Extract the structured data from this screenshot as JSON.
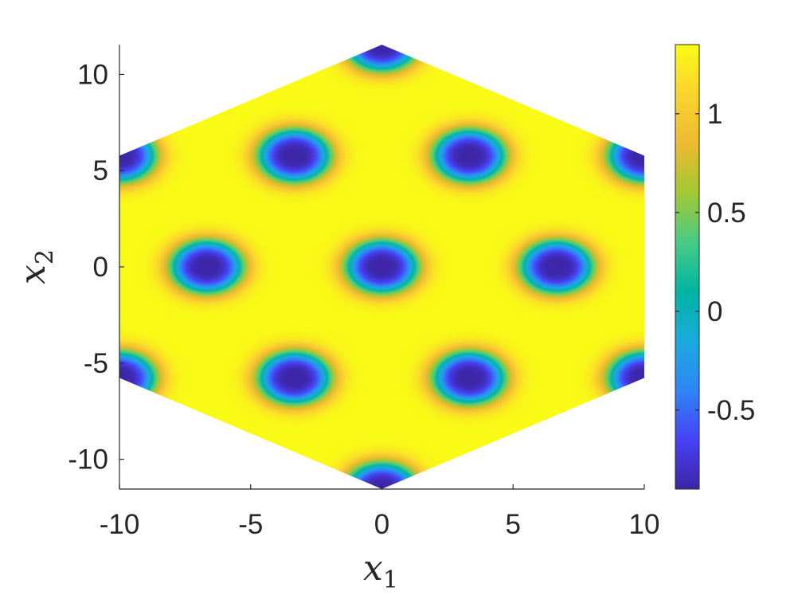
{
  "chart_data": {
    "type": "heatmap",
    "title": "",
    "xlabel": "x",
    "xlabel_sub": "1",
    "ylabel": "x",
    "ylabel_sub": "2",
    "xlim": [
      -10,
      10
    ],
    "ylim": [
      -11.55,
      11.55
    ],
    "x_ticks": [
      -10,
      -5,
      0,
      5,
      10
    ],
    "x_tick_labels": [
      "-10",
      "-5",
      "0",
      "5",
      "10"
    ],
    "y_ticks": [
      -10,
      -5,
      0,
      5,
      10
    ],
    "y_tick_labels": [
      "-10",
      "-5",
      "0",
      "5",
      "10"
    ],
    "domain_shape": "hexagon",
    "hexagon_vertices": [
      [
        0,
        11.547
      ],
      [
        10,
        5.774
      ],
      [
        10,
        -5.774
      ],
      [
        0,
        -11.547
      ],
      [
        -10,
        -5.774
      ],
      [
        -10,
        5.774
      ]
    ],
    "field_minima_centers": [
      [
        0,
        0
      ],
      [
        6.667,
        0
      ],
      [
        -6.667,
        0
      ],
      [
        3.333,
        5.774
      ],
      [
        -3.333,
        5.774
      ],
      [
        3.333,
        -5.774
      ],
      [
        -3.333,
        -5.774
      ],
      [
        0,
        11.547
      ],
      [
        0,
        -11.547
      ],
      [
        10,
        5.774
      ],
      [
        -10,
        5.774
      ],
      [
        10,
        -5.774
      ],
      [
        -10,
        -5.774
      ]
    ],
    "field_min": -0.9,
    "field_max": 1.35,
    "colormap": "parula",
    "colormap_stops": [
      "#3e26a8",
      "#4743f8",
      "#2e87f7",
      "#1caadf",
      "#00b5a1",
      "#48cb86",
      "#a2c833",
      "#edba30",
      "#fad32e",
      "#f9fb15"
    ],
    "colorbar": {
      "location": "right",
      "ticks": [
        -0.5,
        0,
        0.5,
        1
      ],
      "tick_labels": [
        "-0.5",
        "0",
        "0.5",
        "1"
      ]
    },
    "grid": false
  }
}
